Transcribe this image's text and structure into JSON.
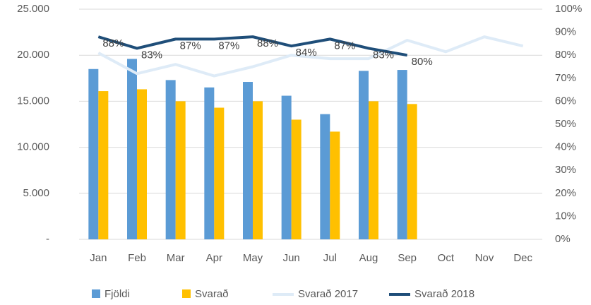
{
  "chart_data": {
    "type": "combo",
    "categories": [
      "Jan",
      "Feb",
      "Mar",
      "Apr",
      "May",
      "Jun",
      "Jul",
      "Aug",
      "Sep",
      "Oct",
      "Nov",
      "Dec"
    ],
    "series": [
      {
        "name": "Fjöldi",
        "mark": "bar",
        "color": "#5b9bd5",
        "values": [
          18500,
          19600,
          17300,
          16500,
          17100,
          15600,
          13600,
          18300,
          18400,
          null,
          null,
          null
        ]
      },
      {
        "name": "Svarað",
        "mark": "bar",
        "color": "#ffc000",
        "values": [
          16100,
          16300,
          15000,
          14300,
          15000,
          13000,
          11700,
          15000,
          14700,
          null,
          null,
          null
        ]
      },
      {
        "name": "Svarað 2017",
        "mark": "line",
        "axis": "y2",
        "color": "#deebf7",
        "values": [
          81,
          72,
          76,
          71,
          75,
          80,
          78.5,
          78.5,
          86.5,
          81.5,
          88,
          84
        ]
      },
      {
        "name": "Svarað 2018",
        "mark": "line",
        "axis": "y2",
        "color": "#1f4e79",
        "values": [
          88,
          83,
          87,
          87,
          88,
          84,
          87,
          83,
          80,
          null,
          null,
          null
        ],
        "value_labels": [
          "88%",
          "83%",
          "87%",
          "87%",
          "88%",
          "84%",
          "87%",
          "83%",
          "80%",
          null,
          null,
          null
        ]
      }
    ],
    "ylim": [
      0,
      25000
    ],
    "yticks": [
      {
        "value": 0,
        "label": "-"
      },
      {
        "value": 5000,
        "label": "5.000"
      },
      {
        "value": 10000,
        "label": "10.000"
      },
      {
        "value": 15000,
        "label": "15.000"
      },
      {
        "value": 20000,
        "label": "20.000"
      },
      {
        "value": 25000,
        "label": "25.000"
      }
    ],
    "y2lim": [
      0,
      100
    ],
    "y2ticks": [
      {
        "value": 0,
        "label": "0%"
      },
      {
        "value": 10,
        "label": "10%"
      },
      {
        "value": 20,
        "label": "20%"
      },
      {
        "value": 30,
        "label": "30%"
      },
      {
        "value": 40,
        "label": "40%"
      },
      {
        "value": 50,
        "label": "50%"
      },
      {
        "value": 60,
        "label": "60%"
      },
      {
        "value": 70,
        "label": "70%"
      },
      {
        "value": 80,
        "label": "80%"
      },
      {
        "value": 90,
        "label": "90%"
      },
      {
        "value": 100,
        "label": "100%"
      }
    ],
    "grid": true,
    "legend": "bottom"
  }
}
